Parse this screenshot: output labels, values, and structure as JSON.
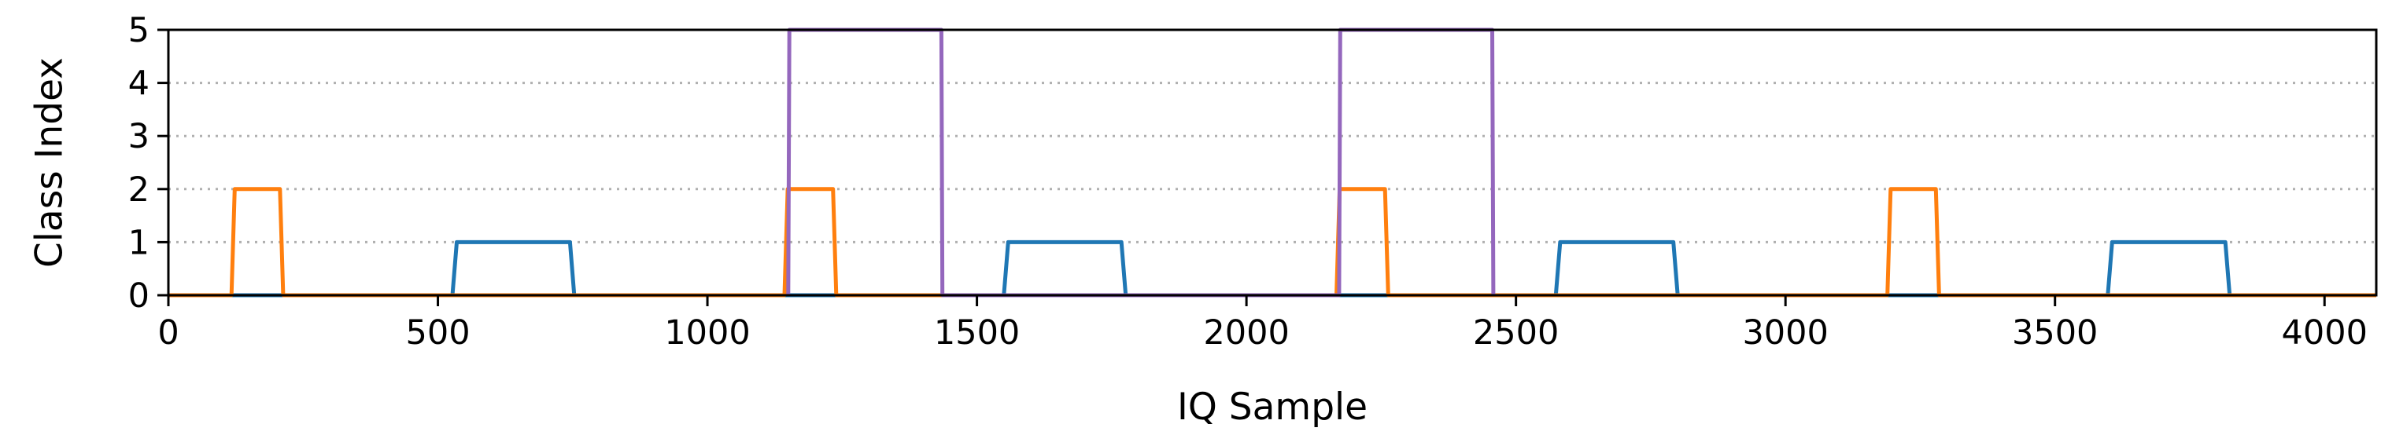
{
  "chart_data": {
    "type": "line",
    "title": "",
    "xlabel": "IQ Sample",
    "ylabel": "Class Index",
    "xlim": [
      0,
      4096
    ],
    "ylim": [
      0,
      5
    ],
    "xticks": [
      0,
      500,
      1000,
      1500,
      2000,
      2500,
      3000,
      3500,
      4000
    ],
    "yticks": [
      0,
      1,
      2,
      3,
      4,
      5
    ],
    "grid": "horizontal-dotted",
    "legend": "none",
    "series": [
      {
        "color": "#1f77b4",
        "points": [
          [
            0,
            0
          ],
          [
            527,
            0
          ],
          [
            535,
            1
          ],
          [
            745,
            1
          ],
          [
            753,
            0
          ],
          [
            1550,
            0
          ],
          [
            1558,
            1
          ],
          [
            1768,
            1
          ],
          [
            1776,
            0
          ],
          [
            2574,
            0
          ],
          [
            2582,
            1
          ],
          [
            2792,
            1
          ],
          [
            2800,
            0
          ],
          [
            3598,
            0
          ],
          [
            3606,
            1
          ],
          [
            3816,
            1
          ],
          [
            3824,
            0
          ],
          [
            4096,
            0
          ]
        ]
      },
      {
        "color": "#ff7f0e",
        "points": [
          [
            0,
            0
          ],
          [
            117,
            0
          ],
          [
            123,
            2
          ],
          [
            207,
            2
          ],
          [
            213,
            0
          ],
          [
            1143,
            0
          ],
          [
            1149,
            2
          ],
          [
            1233,
            2
          ],
          [
            1239,
            0
          ],
          [
            2167,
            0
          ],
          [
            2173,
            2
          ],
          [
            2257,
            2
          ],
          [
            2263,
            0
          ],
          [
            3189,
            0
          ],
          [
            3195,
            2
          ],
          [
            3279,
            2
          ],
          [
            3285,
            0
          ],
          [
            4096,
            0
          ]
        ]
      },
      {
        "color": "#9467bd",
        "points": [
          [
            1150,
            0
          ],
          [
            1152,
            5
          ],
          [
            1434,
            5
          ],
          [
            1436,
            0
          ],
          [
            2172,
            0
          ],
          [
            2174,
            5
          ],
          [
            2456,
            5
          ],
          [
            2458,
            0
          ]
        ]
      }
    ]
  }
}
